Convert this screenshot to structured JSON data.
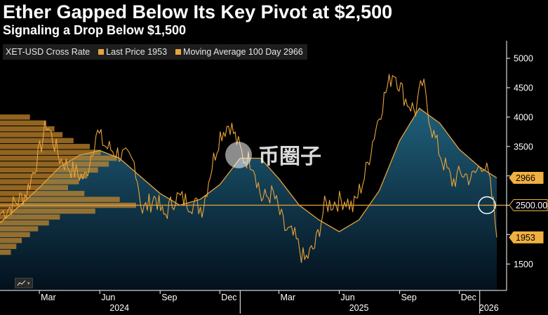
{
  "title": "Ether Gapped Below Its Key Pivot at $2,500",
  "subtitle": "Signaling a Drop Below $1,500",
  "legend": [
    {
      "label": "XET-USD Cross Rate",
      "color": ""
    },
    {
      "label": "Last Price 1953",
      "color": "#e8a33a"
    },
    {
      "label": "Moving Average 100 Day 2966",
      "color": "#e8a33a"
    }
  ],
  "watermark": "币圈子",
  "icons": {
    "chart_tool": "line-chart-icon",
    "pivot_marker": "circle-marker-icon"
  },
  "colors": {
    "background": "#000000",
    "price": "#e8a33a",
    "moving_average": "#e8a33a",
    "ma_fill_top": "#1f5f7a",
    "ma_fill_bottom": "#03101c",
    "volume_profile": "#c98a2e",
    "pivot_line": "#e8a33a",
    "axis_text": "#ffffff",
    "tag_fill": "#f0b040"
  },
  "chart_data": {
    "type": "line",
    "title": "Ether Gapped Below Its Key Pivot at $2,500",
    "subtitle": "Signaling a Drop Below $1,500",
    "xlabel": "",
    "ylabel": "",
    "ylim": [
      1050,
      5300
    ],
    "xlim": [
      "2024-01-01",
      "2026-01-27"
    ],
    "y_ticks": [
      1500,
      2000,
      2500,
      3000,
      3500,
      4000,
      4500,
      5000
    ],
    "y_tick_labels": [
      "1500",
      "",
      "",
      "3000",
      "3500",
      "4000",
      "4500",
      "5000"
    ],
    "x_ticks": [
      {
        "label": "Mar",
        "date": "2024-03-01"
      },
      {
        "label": "Jun",
        "date": "2024-06-01"
      },
      {
        "label": "Sep",
        "date": "2024-09-01"
      },
      {
        "label": "Dec",
        "date": "2024-12-01"
      },
      {
        "label": "Mar",
        "date": "2025-03-01"
      },
      {
        "label": "Jun",
        "date": "2025-06-01"
      },
      {
        "label": "Sep",
        "date": "2025-09-01"
      },
      {
        "label": "Dec",
        "date": "2025-12-01"
      }
    ],
    "year_labels": [
      {
        "label": "2024",
        "date": "2024-07-01"
      },
      {
        "label": "2025",
        "date": "2025-07-01"
      },
      {
        "label": "2026",
        "date": "2026-01-15"
      }
    ],
    "year_boundaries": [
      "2025-01-01",
      "2026-01-01"
    ],
    "value_tags": [
      {
        "label": "2966",
        "value": 2966,
        "style": "filled"
      },
      {
        "label": "2500.00",
        "value": 2500,
        "style": "outline"
      },
      {
        "label": "1953",
        "value": 1953,
        "style": "filled"
      }
    ],
    "pivot": {
      "value": 2500,
      "marker_date": "2026-01-12"
    },
    "grid": false,
    "legend_position": "top-left",
    "series": [
      {
        "name": "Last Price 1953",
        "dates": [
          "2024-01-01",
          "2024-01-20",
          "2024-02-10",
          "2024-03-01",
          "2024-03-12",
          "2024-04-01",
          "2024-04-20",
          "2024-05-10",
          "2024-05-27",
          "2024-06-10",
          "2024-07-05",
          "2024-07-25",
          "2024-08-05",
          "2024-08-25",
          "2024-09-06",
          "2024-09-25",
          "2024-10-15",
          "2024-11-05",
          "2024-11-15",
          "2024-12-01",
          "2024-12-16",
          "2025-01-06",
          "2025-01-20",
          "2025-02-03",
          "2025-02-20",
          "2025-03-10",
          "2025-03-25",
          "2025-04-09",
          "2025-04-25",
          "2025-05-10",
          "2025-05-25",
          "2025-06-10",
          "2025-06-22",
          "2025-07-10",
          "2025-07-25",
          "2025-08-10",
          "2025-08-23",
          "2025-09-10",
          "2025-09-25",
          "2025-10-06",
          "2025-10-20",
          "2025-11-04",
          "2025-11-20",
          "2025-12-05",
          "2025-12-20",
          "2026-01-06",
          "2026-01-14",
          "2026-01-22",
          "2026-01-27"
        ],
        "values": [
          2350,
          2500,
          2700,
          3400,
          3900,
          3300,
          3100,
          2950,
          3750,
          3500,
          3350,
          3200,
          2400,
          2650,
          2300,
          2650,
          2550,
          2450,
          3000,
          3700,
          3900,
          3300,
          3250,
          2600,
          2700,
          2100,
          1950,
          1550,
          1800,
          2500,
          2550,
          2600,
          2450,
          3000,
          3750,
          4400,
          4800,
          4300,
          4100,
          4600,
          3800,
          3300,
          2900,
          3050,
          2950,
          3250,
          3000,
          2500,
          1953
        ]
      },
      {
        "name": "Moving Average 100 Day 2966",
        "dates": [
          "2024-01-01",
          "2024-02-01",
          "2024-03-01",
          "2024-04-01",
          "2024-05-01",
          "2024-06-01",
          "2024-07-01",
          "2024-08-01",
          "2024-09-01",
          "2024-10-01",
          "2024-11-01",
          "2024-12-01",
          "2025-01-01",
          "2025-02-01",
          "2025-03-01",
          "2025-04-01",
          "2025-05-01",
          "2025-06-01",
          "2025-07-01",
          "2025-08-01",
          "2025-09-01",
          "2025-10-01",
          "2025-11-01",
          "2025-12-01",
          "2026-01-01",
          "2026-01-27"
        ],
        "values": [
          2200,
          2500,
          2800,
          3150,
          3350,
          3430,
          3300,
          3000,
          2700,
          2500,
          2600,
          2850,
          3300,
          3300,
          2950,
          2500,
          2250,
          2050,
          2250,
          2750,
          3600,
          4150,
          3900,
          3450,
          3150,
          2966
        ]
      }
    ],
    "volume_profile": {
      "label": "price volume profile (horizontal bars)",
      "price_levels": [
        4000,
        3900,
        3800,
        3700,
        3600,
        3500,
        3400,
        3300,
        3200,
        3100,
        3000,
        2900,
        2800,
        2700,
        2600,
        2500,
        2400,
        2300,
        2200,
        2100,
        2000,
        1900,
        1800,
        1700
      ],
      "relative_volume": [
        0.22,
        0.34,
        0.4,
        0.46,
        0.54,
        0.66,
        0.74,
        0.86,
        0.8,
        0.72,
        0.64,
        0.58,
        0.5,
        0.62,
        0.88,
        1.0,
        0.7,
        0.44,
        0.36,
        0.28,
        0.22,
        0.16,
        0.12,
        0.08
      ]
    }
  }
}
